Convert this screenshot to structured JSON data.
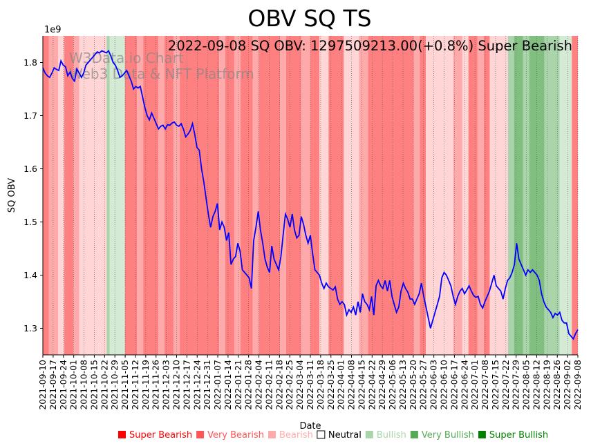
{
  "chart_data": {
    "type": "line",
    "title": "OBV SQ TS",
    "annotation": "2022-09-08 SQ OBV: 1297509213.00(+0.8%) Super Bearish",
    "watermark_line1": "W3Data.io Chart",
    "watermark_line2": "Web3 Data & NFT Platform",
    "xlabel": "Date",
    "ylabel": "SQ OBV",
    "y_exponent_label": "1e9",
    "ylim": [
      1.25,
      1.85
    ],
    "y_ticks": [
      1.3,
      1.4,
      1.5,
      1.6,
      1.7,
      1.8
    ],
    "y_tick_labels": [
      "1.3",
      "1.4",
      "1.5",
      "1.6",
      "1.7",
      "1.8"
    ],
    "x_tick_labels": [
      "2021-09-10",
      "2021-09-17",
      "2021-09-24",
      "2021-10-01",
      "2021-10-08",
      "2021-10-15",
      "2021-10-22",
      "2021-10-29",
      "2021-11-05",
      "2021-11-12",
      "2021-11-19",
      "2021-11-26",
      "2021-12-03",
      "2021-12-10",
      "2021-12-17",
      "2021-12-24",
      "2021-12-31",
      "2022-01-07",
      "2022-01-14",
      "2022-01-21",
      "2022-01-28",
      "2022-02-04",
      "2022-02-11",
      "2022-02-18",
      "2022-02-25",
      "2022-03-04",
      "2022-03-11",
      "2022-03-18",
      "2022-03-25",
      "2022-04-01",
      "2022-04-08",
      "2022-04-15",
      "2022-04-22",
      "2022-04-29",
      "2022-05-06",
      "2022-05-13",
      "2022-05-20",
      "2022-05-27",
      "2022-06-03",
      "2022-06-10",
      "2022-06-17",
      "2022-06-24",
      "2022-07-01",
      "2022-07-08",
      "2022-07-15",
      "2022-07-22",
      "2022-07-29",
      "2022-08-05",
      "2022-08-12",
      "2022-08-19",
      "2022-08-26",
      "2022-09-02",
      "2022-09-08"
    ],
    "legend": [
      {
        "label": "Super Bearish",
        "color": "#ff0000"
      },
      {
        "label": "Very Bearish",
        "color": "#ff5555"
      },
      {
        "label": "Bearish",
        "color": "#ffaaaa"
      },
      {
        "label": "Neutral",
        "color": "#000000"
      },
      {
        "label": "Bullish",
        "color": "#aad4aa"
      },
      {
        "label": "Very Bullish",
        "color": "#55aa55"
      },
      {
        "label": "Super Bullish",
        "color": "#008000"
      }
    ],
    "line_color": "#0000ff",
    "regime_colors": {
      "SB": "#ff8080",
      "VB": "#ffaaaa",
      "B": "#ffd5d5",
      "N": "#ffffff",
      "BU": "#d5ead5",
      "VBU": "#aad4aa",
      "SBU": "#80bf80"
    },
    "regimes": [
      {
        "start": 0,
        "end": 2,
        "state": "SB"
      },
      {
        "start": 2,
        "end": 5,
        "state": "VB"
      },
      {
        "start": 5,
        "end": 7,
        "state": "B"
      },
      {
        "start": 7,
        "end": 10,
        "state": "SB"
      },
      {
        "start": 10,
        "end": 12,
        "state": "VB"
      },
      {
        "start": 12,
        "end": 21,
        "state": "B"
      },
      {
        "start": 21,
        "end": 22,
        "state": "VBU"
      },
      {
        "start": 22,
        "end": 27,
        "state": "BU"
      },
      {
        "start": 27,
        "end": 31,
        "state": "SB"
      },
      {
        "start": 31,
        "end": 33,
        "state": "VB"
      },
      {
        "start": 33,
        "end": 38,
        "state": "SB"
      },
      {
        "start": 38,
        "end": 40,
        "state": "VB"
      },
      {
        "start": 40,
        "end": 43,
        "state": "SB"
      },
      {
        "start": 43,
        "end": 45,
        "state": "VB"
      },
      {
        "start": 45,
        "end": 58,
        "state": "SB"
      },
      {
        "start": 58,
        "end": 60,
        "state": "VB"
      },
      {
        "start": 60,
        "end": 63,
        "state": "SB"
      },
      {
        "start": 63,
        "end": 65,
        "state": "VB"
      },
      {
        "start": 65,
        "end": 69,
        "state": "SB"
      },
      {
        "start": 69,
        "end": 71,
        "state": "VB"
      },
      {
        "start": 71,
        "end": 78,
        "state": "SB"
      },
      {
        "start": 78,
        "end": 80,
        "state": "VB"
      },
      {
        "start": 80,
        "end": 85,
        "state": "SB"
      },
      {
        "start": 85,
        "end": 88,
        "state": "VB"
      },
      {
        "start": 88,
        "end": 91,
        "state": "SB"
      },
      {
        "start": 91,
        "end": 94,
        "state": "B"
      },
      {
        "start": 94,
        "end": 99,
        "state": "SB"
      },
      {
        "start": 99,
        "end": 104,
        "state": "B"
      },
      {
        "start": 104,
        "end": 107,
        "state": "VB"
      },
      {
        "start": 107,
        "end": 122,
        "state": "SB"
      },
      {
        "start": 122,
        "end": 124,
        "state": "VB"
      },
      {
        "start": 124,
        "end": 126,
        "state": "SB"
      },
      {
        "start": 126,
        "end": 135,
        "state": "B"
      },
      {
        "start": 135,
        "end": 138,
        "state": "VB"
      },
      {
        "start": 138,
        "end": 140,
        "state": "B"
      },
      {
        "start": 140,
        "end": 143,
        "state": "SB"
      },
      {
        "start": 143,
        "end": 145,
        "state": "VB"
      },
      {
        "start": 145,
        "end": 147,
        "state": "SB"
      },
      {
        "start": 147,
        "end": 153,
        "state": "B"
      },
      {
        "start": 153,
        "end": 155,
        "state": "VBU"
      },
      {
        "start": 155,
        "end": 158,
        "state": "SBU"
      },
      {
        "start": 158,
        "end": 160,
        "state": "VBU"
      },
      {
        "start": 160,
        "end": 165,
        "state": "SBU"
      },
      {
        "start": 165,
        "end": 170,
        "state": "VBU"
      },
      {
        "start": 170,
        "end": 174,
        "state": "BU"
      },
      {
        "start": 174,
        "end": 176,
        "state": "SB"
      }
    ],
    "values": [
      1.79,
      1.78,
      1.775,
      1.772,
      1.78,
      1.79,
      1.787,
      1.785,
      1.803,
      1.795,
      1.792,
      1.775,
      1.782,
      1.77,
      1.765,
      1.788,
      1.78,
      1.772,
      1.78,
      1.795,
      1.8,
      1.805,
      1.81,
      1.815,
      1.82,
      1.818,
      1.822,
      1.82,
      1.818,
      1.822,
      1.812,
      1.8,
      1.795,
      1.785,
      1.772,
      1.775,
      1.78,
      1.785,
      1.775,
      1.765,
      1.75,
      1.755,
      1.752,
      1.755,
      1.735,
      1.715,
      1.7,
      1.692,
      1.705,
      1.695,
      1.685,
      1.675,
      1.68,
      1.682,
      1.675,
      1.683,
      1.682,
      1.686,
      1.688,
      1.682,
      1.68,
      1.685,
      1.675,
      1.66,
      1.665,
      1.672,
      1.685,
      1.665,
      1.64,
      1.635,
      1.6,
      1.575,
      1.545,
      1.515,
      1.49,
      1.51,
      1.52,
      1.535,
      1.485,
      1.5,
      1.49,
      1.465,
      1.48,
      1.42,
      1.43,
      1.435,
      1.46,
      1.445,
      1.41,
      1.405,
      1.4,
      1.395,
      1.375,
      1.465,
      1.49,
      1.52,
      1.485,
      1.46,
      1.43,
      1.415,
      1.405,
      1.455,
      1.43,
      1.42,
      1.41,
      1.435,
      1.475,
      1.515,
      1.505,
      1.49,
      1.515,
      1.485,
      1.47,
      1.475,
      1.51,
      1.495,
      1.475,
      1.46,
      1.475,
      1.44,
      1.41,
      1.405,
      1.4,
      1.385,
      1.375,
      1.385,
      1.378,
      1.375,
      1.372,
      1.378,
      1.355,
      1.345,
      1.35,
      1.345,
      1.325,
      1.335,
      1.33,
      1.34,
      1.325,
      1.35,
      1.33,
      1.365,
      1.35,
      1.345,
      1.335,
      1.36,
      1.325,
      1.38,
      1.39,
      1.38,
      1.375,
      1.39,
      1.37,
      1.39,
      1.36,
      1.345,
      1.33,
      1.34,
      1.37,
      1.385,
      1.375,
      1.368,
      1.355,
      1.355,
      1.345,
      1.355,
      1.365,
      1.385,
      1.36,
      1.34,
      1.32,
      1.3,
      1.315,
      1.33,
      1.345,
      1.36,
      1.395,
      1.405,
      1.4,
      1.39,
      1.38,
      1.36,
      1.345,
      1.36,
      1.37,
      1.375,
      1.365,
      1.372,
      1.38,
      1.37,
      1.362,
      1.358,
      1.36,
      1.345,
      1.338,
      1.35,
      1.36,
      1.37,
      1.385,
      1.4,
      1.38,
      1.375,
      1.37,
      1.355,
      1.375,
      1.39,
      1.395,
      1.405,
      1.42,
      1.46,
      1.43,
      1.42,
      1.41,
      1.4,
      1.41,
      1.405,
      1.41,
      1.405,
      1.4,
      1.39,
      1.365,
      1.35,
      1.34,
      1.335,
      1.33,
      1.32,
      1.328,
      1.325,
      1.33,
      1.315,
      1.31,
      1.31,
      1.29,
      1.285,
      1.28,
      1.29,
      1.2975
    ]
  }
}
